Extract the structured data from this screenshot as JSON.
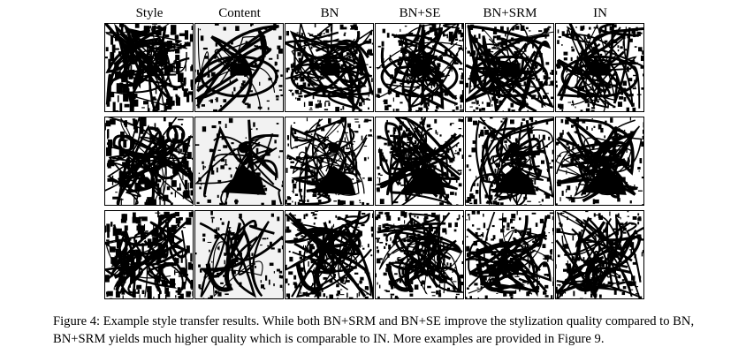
{
  "figure": {
    "columns": [
      "Style",
      "Content",
      "BN",
      "BN+SE",
      "BN+SRM",
      "IN"
    ],
    "rows": 3,
    "caption_line_1": "Figure 4: Example style transfer results. While both BN+SRM and BN+SE improve the stylization quality compared to BN,",
    "caption_line_2": "BN+SRM yields much higher quality which is comparable to IN. More examples are provided in Figure 9."
  }
}
